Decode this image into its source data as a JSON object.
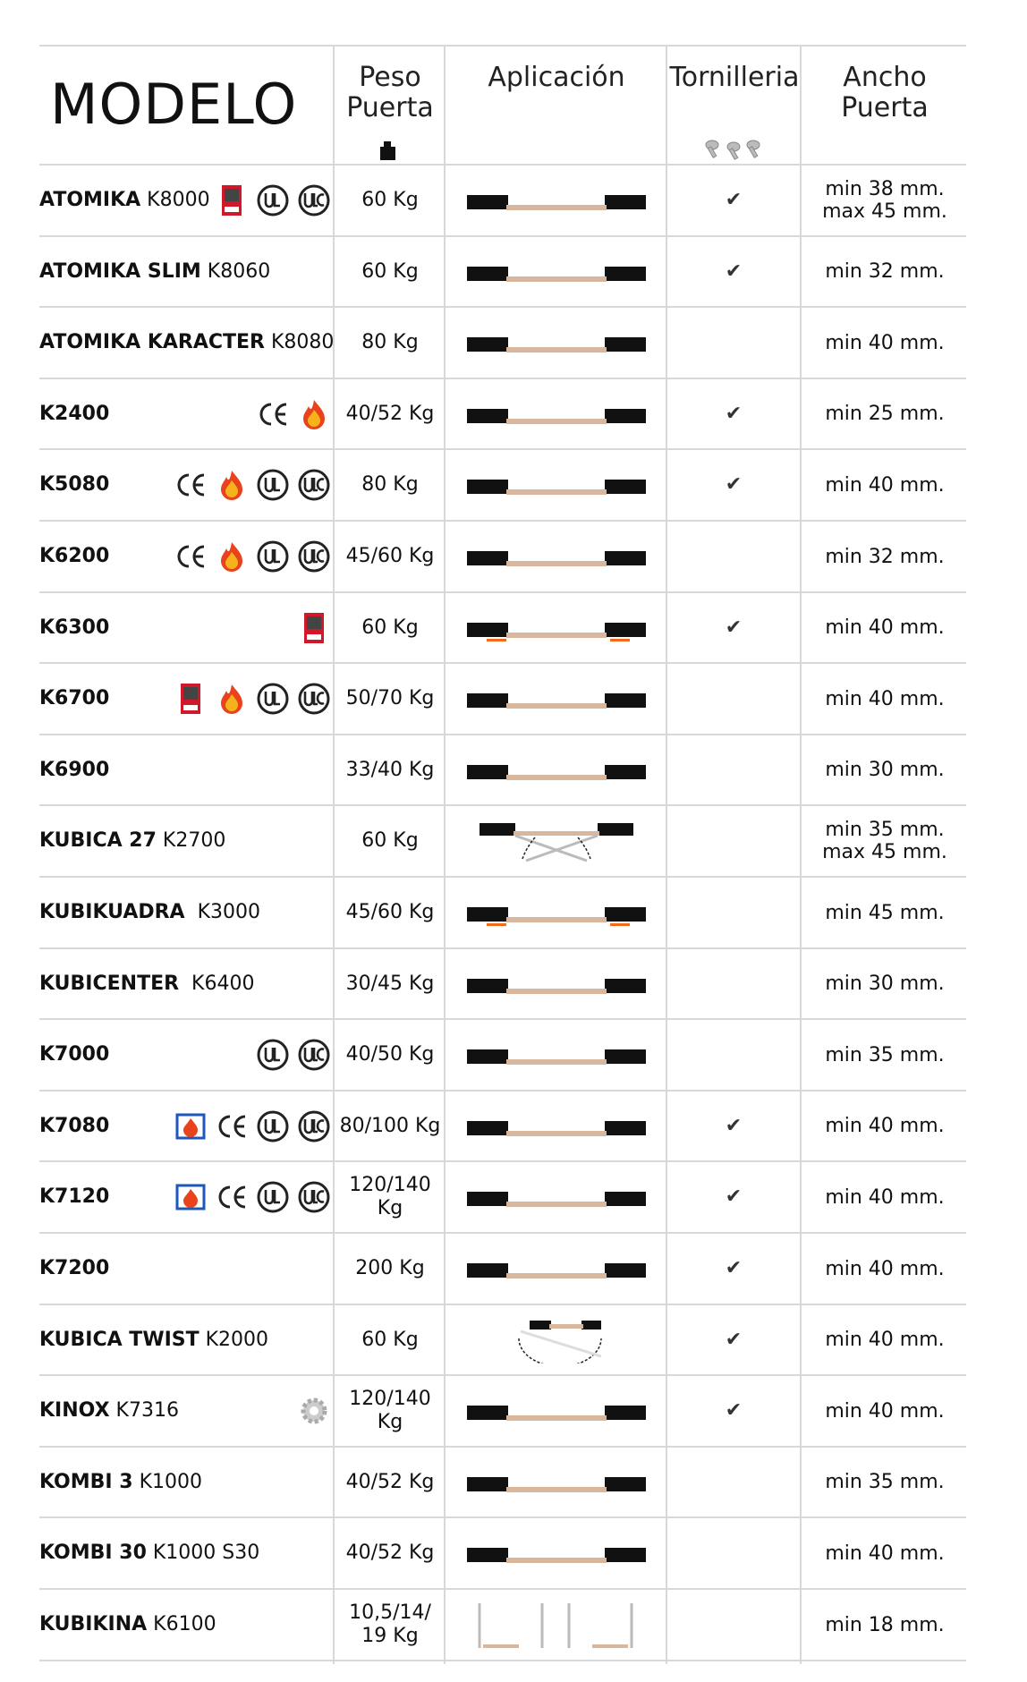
{
  "header": {
    "modelo": "MODELO",
    "peso": [
      "Peso",
      "Puerta"
    ],
    "aplicacion": "Aplicación",
    "tornilleria": "Tornilleria",
    "ancho": [
      "Ancho",
      "Puerta"
    ]
  },
  "rows": [
    {
      "bold": "ATOMIKA",
      "rest": " K8000",
      "certs": [
        "fire-door-icon",
        "ul-icon",
        "ulc-icon"
      ],
      "weight": "60 Kg",
      "app": "slide",
      "check": "✔",
      "width": [
        "min 38 mm.",
        "max 45 mm."
      ]
    },
    {
      "bold": "ATOMIKA SLIM",
      "rest": " K8060",
      "certs": [],
      "weight": "60 Kg",
      "app": "slide",
      "check": "✔",
      "width": [
        "min 32 mm."
      ]
    },
    {
      "bold": "ATOMIKA KARACTER",
      "rest": " K8080",
      "certs": [],
      "weight": "80 Kg",
      "app": "slide",
      "check": "",
      "width": [
        "min 40 mm."
      ]
    },
    {
      "bold": "K2400",
      "rest": "",
      "certs": [
        "ce-icon",
        "flame-icon"
      ],
      "weight": "40/52 Kg",
      "app": "slide",
      "check": "✔",
      "width": [
        "min 25 mm."
      ]
    },
    {
      "bold": "K5080",
      "rest": "",
      "certs": [
        "ce-icon",
        "flame-icon",
        "ul-icon",
        "ulc-icon"
      ],
      "weight": "80 Kg",
      "app": "slide",
      "check": "✔",
      "width": [
        "min 40 mm."
      ]
    },
    {
      "bold": "K6200",
      "rest": "",
      "certs": [
        "ce-icon",
        "flame-icon",
        "ul-icon",
        "ulc-icon"
      ],
      "weight": "45/60 Kg",
      "app": "slide",
      "check": "",
      "width": [
        "min 32 mm."
      ]
    },
    {
      "bold": "K6300",
      "rest": "",
      "certs": [
        "fire-door-icon"
      ],
      "weight": "60 Kg",
      "app": "slide-orange",
      "check": "✔",
      "width": [
        "min 40 mm."
      ]
    },
    {
      "bold": "K6700",
      "rest": "",
      "certs": [
        "fire-door-icon",
        "flame-icon",
        "ul-icon",
        "ulc-icon"
      ],
      "weight": "50/70 Kg",
      "app": "slide",
      "check": "",
      "width": [
        "min 40 mm."
      ]
    },
    {
      "bold": "K6900",
      "rest": "",
      "certs": [],
      "weight": "33/40 Kg",
      "app": "slide",
      "check": "",
      "width": [
        "min 30 mm."
      ]
    },
    {
      "bold": "KUBICA 27",
      "rest": " K2700",
      "certs": [],
      "weight": "60 Kg",
      "app": "fold",
      "check": "",
      "width": [
        "min 35 mm.",
        "max 45 mm."
      ]
    },
    {
      "bold": "KUBIKUADRA",
      "rest": "  K3000",
      "certs": [],
      "weight": "45/60 Kg",
      "app": "slide-orange",
      "check": "",
      "width": [
        "min 45 mm."
      ]
    },
    {
      "bold": "KUBICENTER",
      "rest": "  K6400",
      "certs": [],
      "weight": "30/45 Kg",
      "app": "slide",
      "check": "",
      "width": [
        "min 30 mm."
      ]
    },
    {
      "bold": "K7000",
      "rest": "",
      "certs": [
        "ul-icon",
        "ulc-icon"
      ],
      "weight": "40/50 Kg",
      "app": "slide",
      "check": "",
      "width": [
        "min 35 mm."
      ]
    },
    {
      "bold": "K7080",
      "rest": "",
      "certs": [
        "fire-test-icon",
        "ce-icon",
        "ul-icon",
        "ulc-icon"
      ],
      "weight": "80/100 Kg",
      "app": "slide",
      "check": "✔",
      "width": [
        "min 40 mm."
      ]
    },
    {
      "bold": "K7120",
      "rest": "",
      "certs": [
        "fire-test-icon",
        "ce-icon",
        "ul-icon",
        "ulc-icon"
      ],
      "weight": "120/140 Kg",
      "app": "slide",
      "check": "✔",
      "width": [
        "min 40 mm."
      ]
    },
    {
      "bold": "K7200",
      "rest": "",
      "certs": [],
      "weight": "200 Kg",
      "app": "slide",
      "check": "✔",
      "width": [
        "min 40 mm."
      ]
    },
    {
      "bold": "KUBICA TWIST",
      "rest": " K2000",
      "certs": [],
      "weight": "60 Kg",
      "app": "twist",
      "check": "✔",
      "width": [
        "min 40 mm."
      ]
    },
    {
      "bold": "KINOX",
      "rest": " K7316",
      "certs": [
        "gear-icon"
      ],
      "weight": "120/140 Kg",
      "app": "slide",
      "check": "✔",
      "width": [
        "min 40 mm."
      ]
    },
    {
      "bold": "KOMBI 3",
      "rest": " K1000",
      "certs": [],
      "weight": "40/52 Kg",
      "app": "slide",
      "check": "",
      "width": [
        "min 35 mm."
      ]
    },
    {
      "bold": "KOMBI 30",
      "rest": " K1000 S30",
      "certs": [],
      "weight": "40/52 Kg",
      "app": "slide",
      "check": "",
      "width": [
        "min 40 mm."
      ]
    },
    {
      "bold": "KUBIKINA",
      "rest": " K6100",
      "certs": [],
      "weight": "10,5/14/ 19 Kg",
      "app": "cabinet",
      "check": "",
      "width": [
        "min 18 mm."
      ]
    }
  ]
}
